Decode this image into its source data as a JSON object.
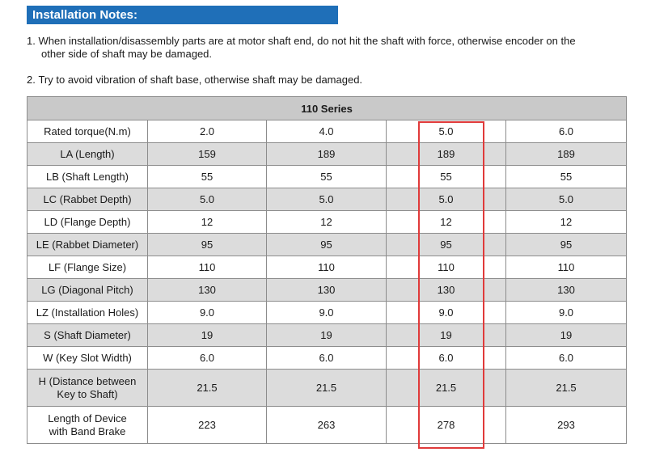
{
  "banner": {
    "title": "Installation Notes:"
  },
  "notes": [
    {
      "number": "1.",
      "line1": "When installation/disassembly parts are at motor shaft end, do not hit the shaft with force, otherwise encoder on the",
      "line2": "other side of shaft may be damaged."
    },
    {
      "number": "2.",
      "line1": "Try to avoid vibration of shaft base, otherwise shaft may be damaged."
    }
  ],
  "table": {
    "header": "110 Series",
    "rows": [
      {
        "label": "Rated torque(N.m)",
        "values": [
          "2.0",
          "4.0",
          "5.0",
          "6.0"
        ]
      },
      {
        "label": "LA (Length)",
        "values": [
          "159",
          "189",
          "189",
          "189"
        ]
      },
      {
        "label": "LB (Shaft Length)",
        "values": [
          "55",
          "55",
          "55",
          "55"
        ]
      },
      {
        "label": "LC (Rabbet Depth)",
        "values": [
          "5.0",
          "5.0",
          "5.0",
          "5.0"
        ]
      },
      {
        "label": "LD (Flange Depth)",
        "values": [
          "12",
          "12",
          "12",
          "12"
        ]
      },
      {
        "label": "LE (Rabbet Diameter)",
        "values": [
          "95",
          "95",
          "95",
          "95"
        ]
      },
      {
        "label": "LF (Flange Size)",
        "values": [
          "110",
          "110",
          "110",
          "110"
        ]
      },
      {
        "label": "LG (Diagonal Pitch)",
        "values": [
          "130",
          "130",
          "130",
          "130"
        ]
      },
      {
        "label": "LZ (Installation Holes)",
        "values": [
          "9.0",
          "9.0",
          "9.0",
          "9.0"
        ]
      },
      {
        "label": "S (Shaft Diameter)",
        "values": [
          "19",
          "19",
          "19",
          "19"
        ]
      },
      {
        "label": "W (Key Slot Width)",
        "values": [
          "6.0",
          "6.0",
          "6.0",
          "6.0"
        ]
      },
      {
        "label_line1": "H (Distance between",
        "label_line2": "Key to Shaft)",
        "values": [
          "21.5",
          "21.5",
          "21.5",
          "21.5"
        ]
      },
      {
        "label_line1": "Length of Device",
        "label_line2": "with Band Brake",
        "values": [
          "223",
          "263",
          "278",
          "293"
        ]
      }
    ]
  },
  "colors": {
    "banner": "#1f6fb8",
    "header_bg": "#c9c9c9",
    "shaded_row": "#dcdcdc",
    "highlight": "#e03a3a"
  }
}
